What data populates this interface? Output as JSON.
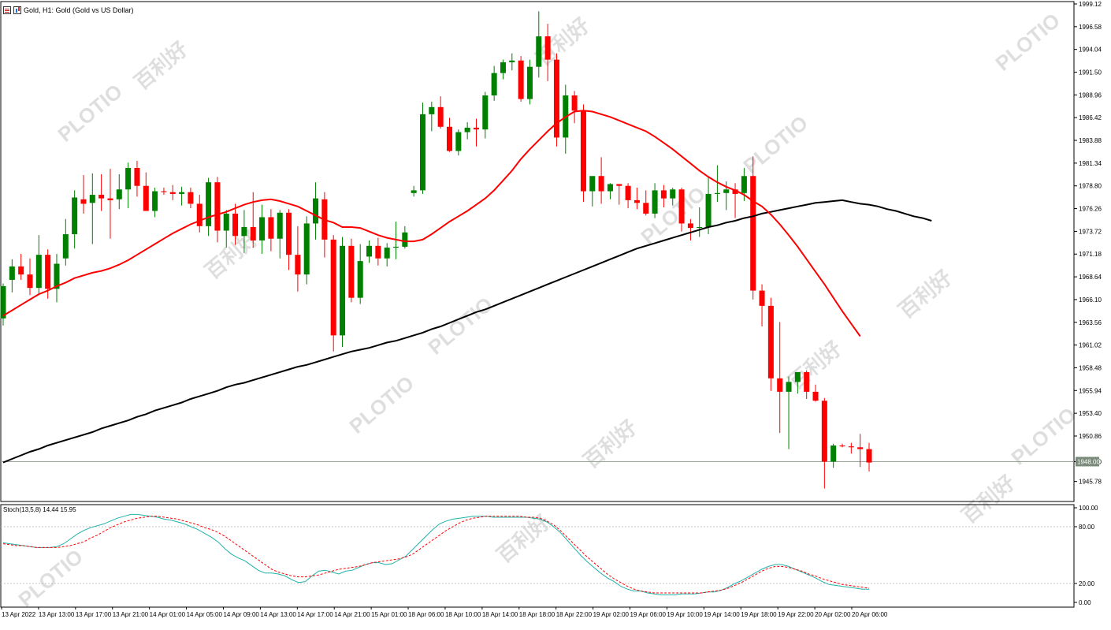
{
  "window": {
    "title": "Gold, H1:  Gold (Gold vs US Dollar)"
  },
  "indicator": {
    "label": "Stoch(13,5,8) 14.44 15.95"
  },
  "watermark": {
    "brand": "PLOTIO",
    "text_cn": "百利好"
  },
  "colors": {
    "bull": "#008000",
    "bear": "#ff0000",
    "ma_fast": "#ff0000",
    "ma_slow": "#000000",
    "stoch_main": "#20b2aa",
    "stoch_signal": "#ff0000",
    "price_line": "#9aa59a"
  },
  "chart_data": [
    {
      "type": "candlestick",
      "symbol": "Gold",
      "timeframe": "H1",
      "ylim": [
        1943.9,
        1999.12
      ],
      "y_ticks": [
        "1999.12",
        "1996.58",
        "1994.04",
        "1991.50",
        "1988.96",
        "1986.42",
        "1983.88",
        "1981.34",
        "1978.80",
        "1976.26",
        "1973.72",
        "1971.18",
        "1968.64",
        "1966.10",
        "1963.56",
        "1961.02",
        "1958.48",
        "1955.94",
        "1953.40",
        "1950.86",
        "1948.00",
        "1945.78"
      ],
      "current_price": 1948.0,
      "current_price_label": "1948.00",
      "x_labels": [
        "13 Apr 2022",
        "13 Apr 13:00",
        "13 Apr 17:00",
        "13 Apr 21:00",
        "14 Apr 01:00",
        "14 Apr 05:00",
        "14 Apr 09:00",
        "14 Apr 13:00",
        "14 Apr 17:00",
        "14 Apr 21:00",
        "15 Apr 01:00",
        "18 Apr 06:00",
        "18 Apr 10:00",
        "18 Apr 14:00",
        "18 Apr 18:00",
        "18 Apr 22:00",
        "19 Apr 02:00",
        "19 Apr 06:00",
        "19 Apr 10:00",
        "19 Apr 14:00",
        "19 Apr 18:00",
        "19 Apr 22:00",
        "20 Apr 02:00",
        "20 Apr 06:00"
      ],
      "candles": [
        {
          "o": 1964.0,
          "h": 1967.9,
          "l": 1963.2,
          "c": 1967.6
        },
        {
          "o": 1968.3,
          "h": 1970.6,
          "l": 1966.9,
          "c": 1969.8
        },
        {
          "o": 1969.8,
          "h": 1971.2,
          "l": 1968.3,
          "c": 1968.9
        },
        {
          "o": 1968.9,
          "h": 1970.7,
          "l": 1966.6,
          "c": 1967.4
        },
        {
          "o": 1967.4,
          "h": 1973.3,
          "l": 1966.6,
          "c": 1971.1
        },
        {
          "o": 1971.1,
          "h": 1971.7,
          "l": 1966.2,
          "c": 1967.3
        },
        {
          "o": 1967.3,
          "h": 1971.2,
          "l": 1965.8,
          "c": 1970.1
        },
        {
          "o": 1970.7,
          "h": 1975.1,
          "l": 1969.9,
          "c": 1973.4
        },
        {
          "o": 1973.4,
          "h": 1978.3,
          "l": 1971.8,
          "c": 1977.5
        },
        {
          "o": 1977.3,
          "h": 1980.0,
          "l": 1975.7,
          "c": 1976.8
        },
        {
          "o": 1976.9,
          "h": 1980.2,
          "l": 1972.3,
          "c": 1977.8
        },
        {
          "o": 1977.8,
          "h": 1980.1,
          "l": 1976.0,
          "c": 1977.4
        },
        {
          "o": 1977.4,
          "h": 1980.7,
          "l": 1972.9,
          "c": 1977.2
        },
        {
          "o": 1977.3,
          "h": 1980.1,
          "l": 1976.2,
          "c": 1978.4
        },
        {
          "o": 1978.4,
          "h": 1981.4,
          "l": 1976.3,
          "c": 1980.8
        },
        {
          "o": 1980.8,
          "h": 1981.6,
          "l": 1977.6,
          "c": 1978.8
        },
        {
          "o": 1978.8,
          "h": 1980.3,
          "l": 1976.5,
          "c": 1976.0
        },
        {
          "o": 1976.0,
          "h": 1978.6,
          "l": 1975.3,
          "c": 1978.2
        },
        {
          "o": 1978.2,
          "h": 1978.6,
          "l": 1977.8,
          "c": 1978.1
        },
        {
          "o": 1978.1,
          "h": 1978.9,
          "l": 1977.2,
          "c": 1977.9
        },
        {
          "o": 1977.9,
          "h": 1978.7,
          "l": 1976.6,
          "c": 1978.1
        },
        {
          "o": 1978.1,
          "h": 1978.6,
          "l": 1976.3,
          "c": 1976.8
        },
        {
          "o": 1976.8,
          "h": 1977.8,
          "l": 1973.6,
          "c": 1974.3
        },
        {
          "o": 1974.3,
          "h": 1979.7,
          "l": 1973.2,
          "c": 1979.2
        },
        {
          "o": 1979.2,
          "h": 1979.8,
          "l": 1972.5,
          "c": 1973.8
        },
        {
          "o": 1973.8,
          "h": 1976.1,
          "l": 1971.9,
          "c": 1975.7
        },
        {
          "o": 1975.7,
          "h": 1976.8,
          "l": 1972.2,
          "c": 1973.2
        },
        {
          "o": 1973.2,
          "h": 1976.1,
          "l": 1971.3,
          "c": 1974.2
        },
        {
          "o": 1974.2,
          "h": 1978.1,
          "l": 1971.9,
          "c": 1972.7
        },
        {
          "o": 1972.7,
          "h": 1976.7,
          "l": 1971.2,
          "c": 1975.3
        },
        {
          "o": 1975.3,
          "h": 1976.2,
          "l": 1971.5,
          "c": 1972.9
        },
        {
          "o": 1972.9,
          "h": 1976.1,
          "l": 1970.7,
          "c": 1975.8
        },
        {
          "o": 1975.8,
          "h": 1976.2,
          "l": 1969.4,
          "c": 1971.1
        },
        {
          "o": 1971.1,
          "h": 1974.3,
          "l": 1967.0,
          "c": 1968.9
        },
        {
          "o": 1968.9,
          "h": 1975.4,
          "l": 1967.8,
          "c": 1974.6
        },
        {
          "o": 1974.6,
          "h": 1979.2,
          "l": 1972.8,
          "c": 1977.4
        },
        {
          "o": 1977.3,
          "h": 1978.1,
          "l": 1970.8,
          "c": 1972.8
        },
        {
          "o": 1972.8,
          "h": 1973.3,
          "l": 1960.3,
          "c": 1962.1
        },
        {
          "o": 1962.1,
          "h": 1973.1,
          "l": 1960.8,
          "c": 1972.1
        },
        {
          "o": 1972.1,
          "h": 1972.9,
          "l": 1965.8,
          "c": 1966.3
        },
        {
          "o": 1966.3,
          "h": 1972.3,
          "l": 1965.6,
          "c": 1970.4
        },
        {
          "o": 1970.9,
          "h": 1972.7,
          "l": 1970.2,
          "c": 1972.1
        },
        {
          "o": 1972.1,
          "h": 1973.0,
          "l": 1969.9,
          "c": 1970.7
        },
        {
          "o": 1970.7,
          "h": 1972.4,
          "l": 1969.8,
          "c": 1971.9
        },
        {
          "o": 1971.9,
          "h": 1974.8,
          "l": 1970.6,
          "c": 1972.0
        },
        {
          "o": 1972.0,
          "h": 1974.3,
          "l": 1971.8,
          "c": 1973.6
        },
        {
          "o": 1978.0,
          "h": 1978.8,
          "l": 1977.6,
          "c": 1978.3
        },
        {
          "o": 1978.3,
          "h": 1988.1,
          "l": 1977.9,
          "c": 1986.8
        },
        {
          "o": 1986.8,
          "h": 1988.2,
          "l": 1984.9,
          "c": 1987.6
        },
        {
          "o": 1987.6,
          "h": 1988.8,
          "l": 1985.2,
          "c": 1985.4
        },
        {
          "o": 1985.4,
          "h": 1986.4,
          "l": 1982.6,
          "c": 1982.7
        },
        {
          "o": 1982.7,
          "h": 1985.1,
          "l": 1982.2,
          "c": 1984.8
        },
        {
          "o": 1984.8,
          "h": 1985.9,
          "l": 1984.0,
          "c": 1985.3
        },
        {
          "o": 1985.3,
          "h": 1986.3,
          "l": 1983.2,
          "c": 1985.1
        },
        {
          "o": 1985.1,
          "h": 1989.3,
          "l": 1984.1,
          "c": 1988.9
        },
        {
          "o": 1988.9,
          "h": 1992.2,
          "l": 1988.3,
          "c": 1991.4
        },
        {
          "o": 1991.4,
          "h": 1992.9,
          "l": 1990.7,
          "c": 1992.6
        },
        {
          "o": 1992.6,
          "h": 1993.6,
          "l": 1991.7,
          "c": 1992.8
        },
        {
          "o": 1992.8,
          "h": 1993.3,
          "l": 1988.2,
          "c": 1988.5
        },
        {
          "o": 1988.5,
          "h": 1992.9,
          "l": 1987.9,
          "c": 1992.1
        },
        {
          "o": 1992.1,
          "h": 1998.3,
          "l": 1990.9,
          "c": 1995.5
        },
        {
          "o": 1995.5,
          "h": 1996.9,
          "l": 1990.5,
          "c": 1992.9
        },
        {
          "o": 1992.9,
          "h": 1993.6,
          "l": 1983.2,
          "c": 1984.2
        },
        {
          "o": 1984.2,
          "h": 1990.1,
          "l": 1982.4,
          "c": 1988.9
        },
        {
          "o": 1988.9,
          "h": 1989.4,
          "l": 1985.8,
          "c": 1987.2
        },
        {
          "o": 1987.2,
          "h": 1987.9,
          "l": 1977.0,
          "c": 1978.2
        },
        {
          "o": 1978.2,
          "h": 1979.6,
          "l": 1976.5,
          "c": 1979.9
        },
        {
          "o": 1979.9,
          "h": 1982.0,
          "l": 1976.8,
          "c": 1978.2
        },
        {
          "o": 1978.2,
          "h": 1979.1,
          "l": 1977.3,
          "c": 1979.0
        },
        {
          "o": 1979.0,
          "h": 1979.0,
          "l": 1976.7,
          "c": 1978.8
        },
        {
          "o": 1978.8,
          "h": 1979.1,
          "l": 1976.3,
          "c": 1977.2
        },
        {
          "o": 1977.2,
          "h": 1978.6,
          "l": 1976.2,
          "c": 1976.9
        },
        {
          "o": 1976.9,
          "h": 1978.3,
          "l": 1975.5,
          "c": 1975.7
        },
        {
          "o": 1975.7,
          "h": 1979.1,
          "l": 1975.2,
          "c": 1978.3
        },
        {
          "o": 1978.3,
          "h": 1978.9,
          "l": 1976.4,
          "c": 1977.4
        },
        {
          "o": 1977.4,
          "h": 1978.6,
          "l": 1976.6,
          "c": 1978.4
        },
        {
          "o": 1978.4,
          "h": 1978.6,
          "l": 1973.7,
          "c": 1974.6
        },
        {
          "o": 1974.6,
          "h": 1975.1,
          "l": 1972.7,
          "c": 1974.1
        },
        {
          "o": 1974.1,
          "h": 1976.4,
          "l": 1973.1,
          "c": 1974.2
        },
        {
          "o": 1974.2,
          "h": 1979.9,
          "l": 1973.4,
          "c": 1977.9
        },
        {
          "o": 1977.9,
          "h": 1981.1,
          "l": 1977.0,
          "c": 1978.0
        },
        {
          "o": 1978.0,
          "h": 1979.3,
          "l": 1976.1,
          "c": 1978.4
        },
        {
          "o": 1978.4,
          "h": 1979.1,
          "l": 1975.2,
          "c": 1977.9
        },
        {
          "o": 1978.0,
          "h": 1980.8,
          "l": 1977.1,
          "c": 1979.9
        },
        {
          "o": 1979.9,
          "h": 1982.1,
          "l": 1966.1,
          "c": 1967.1
        },
        {
          "o": 1967.1,
          "h": 1967.8,
          "l": 1963.1,
          "c": 1965.4
        },
        {
          "o": 1965.4,
          "h": 1966.3,
          "l": 1955.9,
          "c": 1957.3
        },
        {
          "o": 1957.3,
          "h": 1963.6,
          "l": 1951.2,
          "c": 1955.8
        },
        {
          "o": 1955.8,
          "h": 1957.5,
          "l": 1949.4,
          "c": 1956.9
        },
        {
          "o": 1956.9,
          "h": 1958.0,
          "l": 1955.6,
          "c": 1958.0
        },
        {
          "o": 1958.0,
          "h": 1958.2,
          "l": 1955.0,
          "c": 1955.8
        },
        {
          "o": 1955.8,
          "h": 1956.6,
          "l": 1954.7,
          "c": 1954.8
        },
        {
          "o": 1954.8,
          "h": 1955.1,
          "l": 1945.0,
          "c": 1948.0
        },
        {
          "o": 1948.0,
          "h": 1950.0,
          "l": 1947.3,
          "c": 1949.8
        },
        {
          "o": 1949.8,
          "h": 1950.0,
          "l": 1949.6,
          "c": 1949.7
        },
        {
          "o": 1949.7,
          "h": 1950.1,
          "l": 1948.9,
          "c": 1949.6
        },
        {
          "o": 1949.6,
          "h": 1951.1,
          "l": 1947.4,
          "c": 1949.4
        },
        {
          "o": 1949.4,
          "h": 1950.1,
          "l": 1946.9,
          "c": 1947.9
        }
      ],
      "ma_fast": [
        1964.3,
        1964.9,
        1965.5,
        1966.1,
        1966.7,
        1967.1,
        1967.6,
        1968.0,
        1968.5,
        1968.8,
        1969.1,
        1969.3,
        1969.6,
        1970.0,
        1970.5,
        1971.1,
        1971.7,
        1972.3,
        1972.9,
        1973.5,
        1974.0,
        1974.5,
        1974.9,
        1975.3,
        1975.6,
        1975.9,
        1976.3,
        1976.7,
        1977.0,
        1977.2,
        1977.3,
        1977.1,
        1976.8,
        1976.5,
        1976.0,
        1975.5,
        1975.0,
        1974.7,
        1974.2,
        1974.2,
        1974.1,
        1973.7,
        1973.3,
        1973.0,
        1972.8,
        1972.6,
        1972.6,
        1972.8,
        1973.4,
        1974.1,
        1974.8,
        1975.4,
        1976.0,
        1976.7,
        1977.4,
        1978.3,
        1979.4,
        1980.5,
        1981.8,
        1982.9,
        1983.9,
        1984.9,
        1985.8,
        1986.5,
        1987.1,
        1987.2,
        1987.1,
        1986.8,
        1986.5,
        1986.1,
        1985.7,
        1985.3,
        1984.9,
        1984.3,
        1983.6,
        1982.9,
        1982.1,
        1981.3,
        1980.5,
        1979.8,
        1979.2,
        1978.7,
        1978.3,
        1977.8,
        1977.1,
        1976.5,
        1975.6,
        1974.5,
        1973.3,
        1972.0,
        1970.6,
        1969.2,
        1967.8,
        1966.3,
        1964.8,
        1963.4,
        1962.0
      ],
      "ma_slow": [
        1947.9,
        1948.3,
        1948.7,
        1949.1,
        1949.4,
        1949.8,
        1950.1,
        1950.4,
        1950.7,
        1951.0,
        1951.3,
        1951.7,
        1952.0,
        1952.3,
        1952.6,
        1953.0,
        1953.3,
        1953.7,
        1954.0,
        1954.3,
        1954.6,
        1955.0,
        1955.3,
        1955.6,
        1955.9,
        1956.3,
        1956.6,
        1956.8,
        1957.1,
        1957.4,
        1957.7,
        1958.0,
        1958.3,
        1958.6,
        1958.8,
        1959.1,
        1959.4,
        1959.7,
        1960.0,
        1960.3,
        1960.5,
        1960.7,
        1961.0,
        1961.3,
        1961.5,
        1961.8,
        1962.1,
        1962.4,
        1962.8,
        1963.1,
        1963.5,
        1963.9,
        1964.3,
        1964.7,
        1965.0,
        1965.4,
        1965.8,
        1966.2,
        1966.6,
        1967.0,
        1967.4,
        1967.8,
        1968.2,
        1968.6,
        1969.0,
        1969.4,
        1969.8,
        1970.2,
        1970.6,
        1971.0,
        1971.4,
        1971.8,
        1972.1,
        1972.4,
        1972.7,
        1973.0,
        1973.3,
        1973.6,
        1973.9,
        1974.2,
        1974.4,
        1974.7,
        1974.9,
        1975.2,
        1975.4,
        1975.7,
        1975.9,
        1976.1,
        1976.3,
        1976.5,
        1976.7,
        1976.9,
        1977.0,
        1977.1,
        1977.2,
        1977.0,
        1976.8,
        1976.7,
        1976.5,
        1976.2,
        1976.0,
        1975.7,
        1975.4,
        1975.2,
        1974.9
      ],
      "stoch_ylim": [
        0,
        100
      ],
      "stoch_ticks": [
        "100.00",
        "80.00",
        "20.00",
        "0.00"
      ],
      "stoch_levels": [
        80,
        20
      ],
      "stoch_main": [
        63,
        62,
        61,
        60,
        59,
        58,
        58,
        58,
        59,
        62,
        67,
        72,
        76,
        79,
        81,
        83,
        86,
        89,
        91,
        93,
        93,
        92,
        91,
        90,
        88,
        87,
        85,
        83,
        80,
        77,
        73,
        69,
        64,
        57,
        51,
        47,
        44,
        39,
        34,
        31,
        31,
        30,
        28,
        24,
        21,
        22,
        28,
        33,
        34,
        32,
        30,
        33,
        34,
        37,
        40,
        42,
        42,
        40,
        41,
        45,
        49,
        56,
        63,
        70,
        77,
        83,
        86,
        88,
        89,
        90,
        91,
        91,
        91,
        90,
        90,
        90,
        90,
        90,
        90,
        89,
        88,
        85,
        80,
        74,
        66,
        58,
        50,
        43,
        37,
        31,
        26,
        22,
        17,
        14,
        12,
        12,
        10,
        9,
        8,
        8,
        8,
        9,
        9,
        9,
        10,
        11,
        11,
        13,
        16,
        20,
        23,
        27,
        31,
        35,
        38,
        40,
        40,
        38,
        35,
        32,
        29,
        26,
        22,
        19,
        18,
        17,
        16,
        15,
        14,
        14
      ],
      "stoch_signal": [
        62,
        61,
        60,
        60,
        59,
        58,
        58,
        58,
        58,
        59,
        60,
        62,
        64,
        68,
        71,
        75,
        79,
        82,
        85,
        87,
        89,
        90,
        91,
        91,
        90,
        89,
        88,
        86,
        84,
        82,
        79,
        77,
        74,
        70,
        65,
        60,
        55,
        50,
        45,
        40,
        35,
        32,
        30,
        28,
        27,
        27,
        28,
        29,
        31,
        33,
        35,
        36,
        37,
        38,
        40,
        42,
        43,
        44,
        45,
        46,
        48,
        51,
        56,
        61,
        66,
        71,
        76,
        80,
        84,
        87,
        89,
        90,
        91,
        91,
        91,
        91,
        91,
        91,
        90,
        90,
        89,
        86,
        82,
        76,
        69,
        62,
        55,
        48,
        42,
        36,
        30,
        25,
        21,
        17,
        14,
        12,
        11,
        10,
        10,
        10,
        10,
        10,
        10,
        10,
        10,
        11,
        12,
        13,
        15,
        18,
        21,
        25,
        29,
        33,
        36,
        38,
        38,
        37,
        35,
        33,
        30,
        28,
        25,
        23,
        21,
        19,
        18,
        17,
        16,
        15
      ]
    }
  ]
}
